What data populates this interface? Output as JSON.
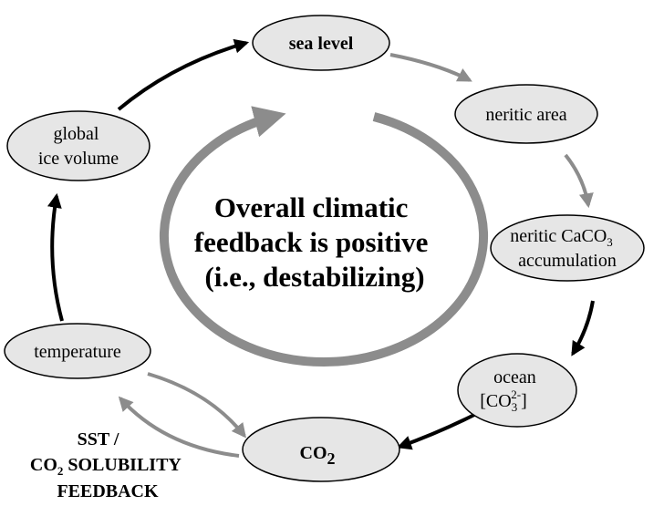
{
  "center": {
    "lines": [
      "Overall climatic",
      "feedback is positive",
      "(i.e., destabilizing)"
    ]
  },
  "nodes": [
    {
      "label": "sea level"
    },
    {
      "label": "neritic area"
    },
    {
      "parts": [
        "neritic CaCO",
        "3",
        "accumulation"
      ]
    },
    {
      "parts": [
        "ocean",
        "[CO",
        "3",
        "2-",
        "]"
      ]
    },
    {
      "parts": [
        "CO",
        "2"
      ]
    },
    {
      "label": "temperature"
    },
    {
      "lines": [
        "global",
        "ice volume"
      ]
    }
  ],
  "feedback_label": {
    "parts": [
      "SST /",
      "CO",
      "2",
      " SOLUBILITY",
      "FEEDBACK"
    ]
  }
}
